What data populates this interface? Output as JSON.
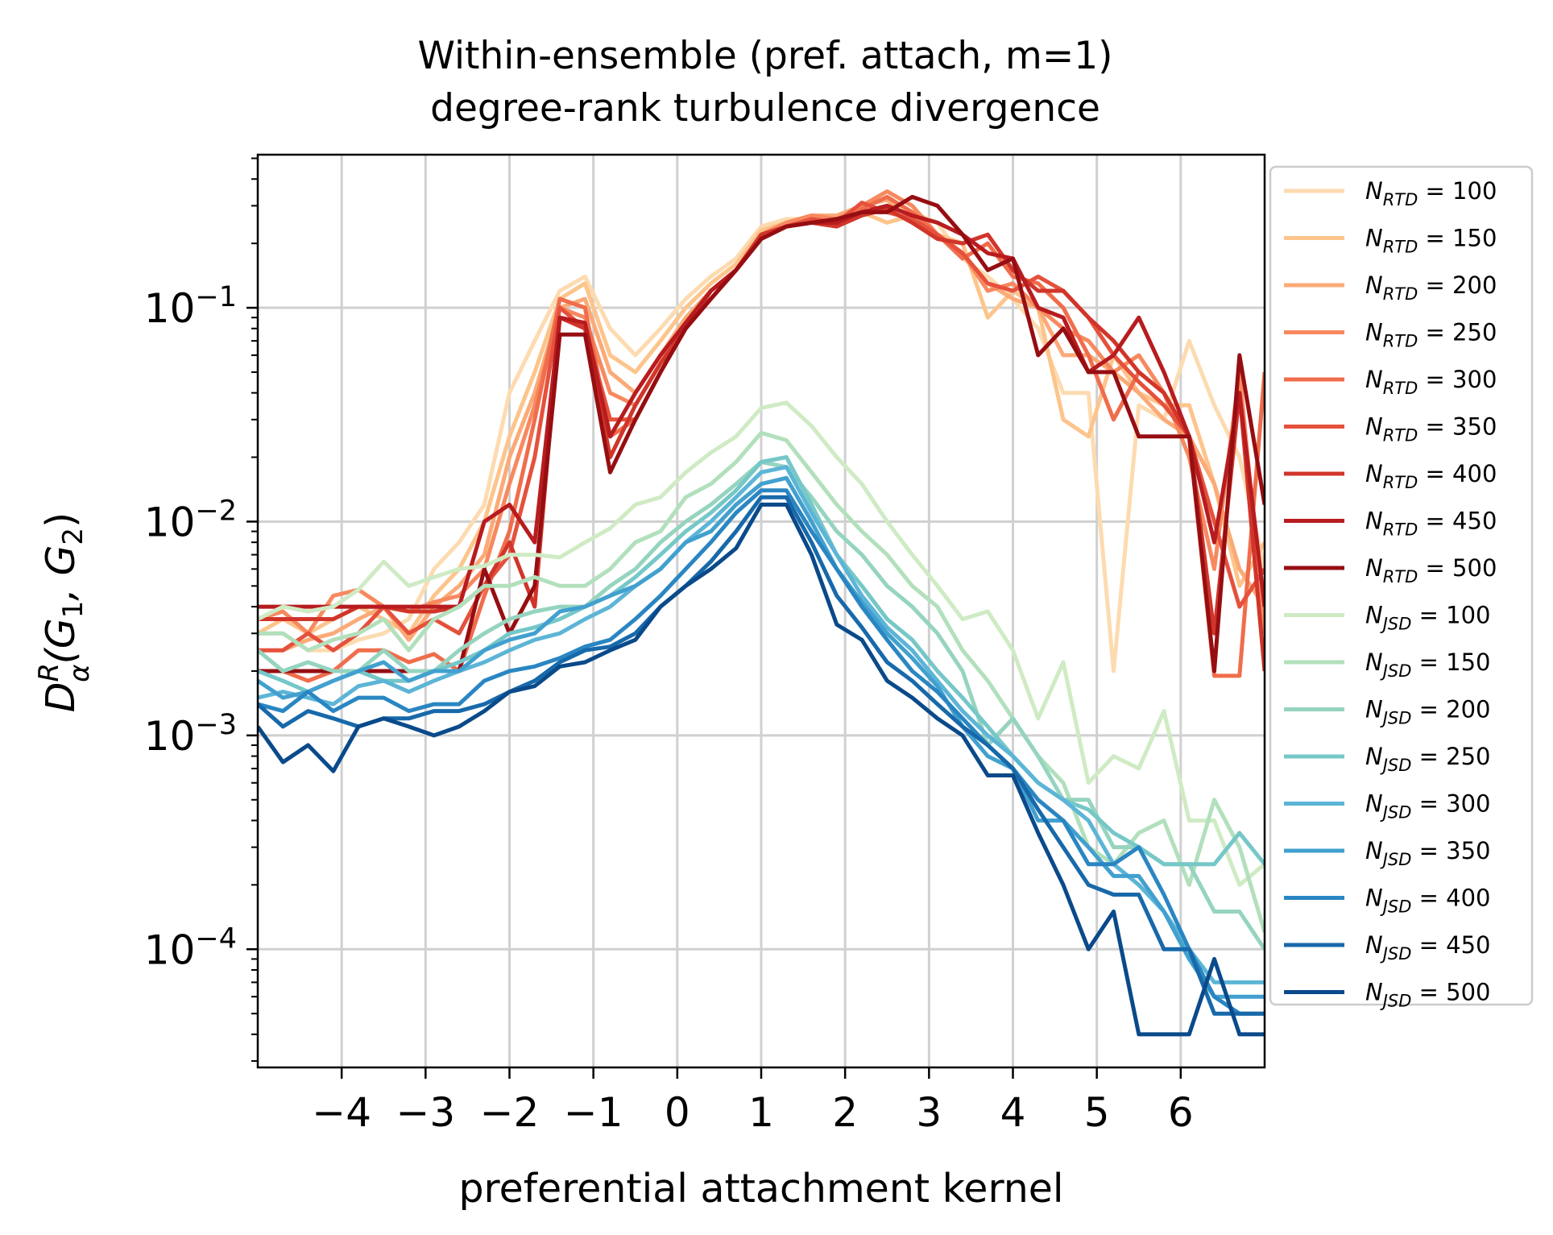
{
  "chart_data": {
    "type": "line",
    "title": "Within-ensemble (pref. attach, m=1)",
    "subtitle": "degree-rank turbulence divergence",
    "xlabel": "preferential attachment kernel",
    "ylabel": {
      "base": "D",
      "sup": "R",
      "sub": "α",
      "args": "(G",
      "sub1": "1",
      "comma": ", G",
      "sub2": "2",
      "close": ")"
    },
    "x_ticks": [
      -4,
      -3,
      -2,
      -1,
      0,
      1,
      2,
      3,
      4,
      5,
      6
    ],
    "x_tick_labels": [
      "−4",
      "−3",
      "−2",
      "−1",
      "0",
      "1",
      "2",
      "3",
      "4",
      "5",
      "6"
    ],
    "y_ticks": [
      {
        "value": 0.1,
        "base": "10",
        "exp": "−1"
      },
      {
        "value": 0.01,
        "base": "10",
        "exp": "−2"
      },
      {
        "value": 0.001,
        "base": "10",
        "exp": "−3"
      },
      {
        "value": 0.0001,
        "base": "10",
        "exp": "−4"
      }
    ],
    "xlim": [
      -5.0,
      7.0
    ],
    "ylim": [
      2.8e-05,
      0.52
    ],
    "yscale": "log",
    "grid": true,
    "legend_position": "outside right",
    "x": [
      -5.0,
      -4.7,
      -4.4,
      -4.1,
      -3.8,
      -3.5,
      -3.2,
      -2.9,
      -2.6,
      -2.3,
      -2.0,
      -1.7,
      -1.4,
      -1.1,
      -0.8,
      -0.5,
      -0.2,
      0.1,
      0.4,
      0.7,
      1.0,
      1.3,
      1.6,
      1.9,
      2.2,
      2.5,
      2.8,
      3.1,
      3.4,
      3.7,
      4.0,
      4.3,
      4.6,
      4.9,
      5.2,
      5.5,
      5.8,
      6.1,
      6.4,
      6.7,
      7.0
    ],
    "series": [
      {
        "name": "100",
        "group": "RTD",
        "color": "#fddbb0",
        "values": [
          0.003,
          0.003,
          0.0025,
          0.0025,
          0.0028,
          0.003,
          0.0035,
          0.006,
          0.008,
          0.012,
          0.04,
          0.07,
          0.12,
          0.14,
          0.08,
          0.06,
          0.08,
          0.11,
          0.14,
          0.17,
          0.24,
          0.26,
          0.26,
          0.25,
          0.28,
          0.3,
          0.28,
          0.25,
          0.17,
          0.14,
          0.11,
          0.08,
          0.04,
          0.04,
          0.002,
          0.035,
          0.03,
          0.07,
          0.035,
          0.02,
          0.006
        ]
      },
      {
        "name": "150",
        "group": "RTD",
        "color": "#fdc48b",
        "values": [
          0.003,
          0.0035,
          0.003,
          0.0035,
          0.004,
          0.0035,
          0.003,
          0.0045,
          0.006,
          0.01,
          0.025,
          0.05,
          0.11,
          0.13,
          0.06,
          0.05,
          0.07,
          0.1,
          0.13,
          0.16,
          0.23,
          0.25,
          0.27,
          0.26,
          0.28,
          0.25,
          0.27,
          0.22,
          0.2,
          0.09,
          0.12,
          0.1,
          0.03,
          0.025,
          0.06,
          0.04,
          0.035,
          0.035,
          0.015,
          0.005,
          0.008
        ]
      },
      {
        "name": "200",
        "group": "RTD",
        "color": "#fbaa77",
        "values": [
          0.0025,
          0.0025,
          0.0028,
          0.003,
          0.0035,
          0.004,
          0.0028,
          0.004,
          0.005,
          0.007,
          0.02,
          0.04,
          0.1,
          0.11,
          0.05,
          0.04,
          0.06,
          0.09,
          0.12,
          0.15,
          0.22,
          0.25,
          0.27,
          0.27,
          0.3,
          0.32,
          0.25,
          0.22,
          0.18,
          0.13,
          0.11,
          0.1,
          0.06,
          0.06,
          0.05,
          0.04,
          0.03,
          0.025,
          0.015,
          0.006,
          0.004
        ]
      },
      {
        "name": "250",
        "group": "RTD",
        "color": "#f7895f",
        "values": [
          0.0035,
          0.0038,
          0.003,
          0.0045,
          0.0048,
          0.004,
          0.0038,
          0.0042,
          0.0045,
          0.006,
          0.015,
          0.035,
          0.1,
          0.09,
          0.04,
          0.035,
          0.055,
          0.085,
          0.12,
          0.15,
          0.22,
          0.25,
          0.27,
          0.26,
          0.3,
          0.35,
          0.3,
          0.22,
          0.18,
          0.12,
          0.13,
          0.1,
          0.08,
          0.07,
          0.05,
          0.06,
          0.04,
          0.02,
          0.006,
          0.05,
          0.003
        ]
      },
      {
        "name": "300",
        "group": "RTD",
        "color": "#f06d4c",
        "values": [
          0.002,
          0.002,
          0.0018,
          0.002,
          0.0025,
          0.0025,
          0.0022,
          0.0024,
          0.002,
          0.0045,
          0.009,
          0.03,
          0.11,
          0.1,
          0.025,
          0.03,
          0.05,
          0.08,
          0.12,
          0.15,
          0.22,
          0.24,
          0.26,
          0.24,
          0.29,
          0.33,
          0.28,
          0.22,
          0.17,
          0.2,
          0.14,
          0.13,
          0.1,
          0.06,
          0.03,
          0.05,
          0.04,
          0.025,
          0.0019,
          0.0019,
          0.05
        ]
      },
      {
        "name": "350",
        "group": "RTD",
        "color": "#e5513c",
        "values": [
          0.0025,
          0.0025,
          0.003,
          0.0025,
          0.003,
          0.004,
          0.003,
          0.0035,
          0.003,
          0.005,
          0.007,
          0.02,
          0.1,
          0.08,
          0.03,
          0.03,
          0.05,
          0.08,
          0.11,
          0.15,
          0.21,
          0.24,
          0.26,
          0.25,
          0.31,
          0.28,
          0.26,
          0.22,
          0.18,
          0.13,
          0.12,
          0.14,
          0.12,
          0.09,
          0.06,
          0.045,
          0.035,
          0.025,
          0.01,
          0.004,
          0.006
        ]
      },
      {
        "name": "400",
        "group": "RTD",
        "color": "#d1352a",
        "values": [
          0.0035,
          0.0035,
          0.0035,
          0.0035,
          0.004,
          0.004,
          0.0038,
          0.0038,
          0.004,
          0.005,
          0.008,
          0.004,
          0.09,
          0.08,
          0.02,
          0.035,
          0.055,
          0.08,
          0.12,
          0.15,
          0.22,
          0.24,
          0.25,
          0.24,
          0.27,
          0.29,
          0.25,
          0.21,
          0.2,
          0.22,
          0.15,
          0.12,
          0.12,
          0.09,
          0.07,
          0.05,
          0.04,
          0.025,
          0.003,
          0.04,
          0.002
        ]
      },
      {
        "name": "450",
        "group": "RTD",
        "color": "#b81c1f",
        "values": [
          0.004,
          0.004,
          0.004,
          0.004,
          0.004,
          0.004,
          0.004,
          0.004,
          0.004,
          0.01,
          0.012,
          0.008,
          0.09,
          0.085,
          0.025,
          0.04,
          0.06,
          0.085,
          0.12,
          0.15,
          0.21,
          0.24,
          0.25,
          0.25,
          0.28,
          0.3,
          0.27,
          0.25,
          0.22,
          0.18,
          0.17,
          0.1,
          0.09,
          0.05,
          0.06,
          0.09,
          0.05,
          0.025,
          0.008,
          0.04,
          0.004
        ]
      },
      {
        "name": "500",
        "group": "RTD",
        "color": "#960e12",
        "values": [
          0.002,
          0.002,
          0.002,
          0.002,
          0.002,
          0.002,
          0.002,
          0.002,
          0.002,
          0.006,
          0.003,
          0.005,
          0.075,
          0.075,
          0.017,
          0.03,
          0.05,
          0.08,
          0.11,
          0.15,
          0.21,
          0.24,
          0.25,
          0.26,
          0.28,
          0.28,
          0.33,
          0.3,
          0.22,
          0.15,
          0.17,
          0.06,
          0.08,
          0.05,
          0.05,
          0.025,
          0.025,
          0.025,
          0.002,
          0.06,
          0.012
        ]
      },
      {
        "name": "100",
        "group": "JSD",
        "color": "#cfebc4",
        "values": [
          0.0035,
          0.004,
          0.0038,
          0.004,
          0.0048,
          0.0065,
          0.005,
          0.0055,
          0.006,
          0.0062,
          0.007,
          0.007,
          0.0068,
          0.008,
          0.0093,
          0.012,
          0.013,
          0.017,
          0.021,
          0.025,
          0.034,
          0.036,
          0.028,
          0.02,
          0.015,
          0.01,
          0.007,
          0.005,
          0.0035,
          0.0038,
          0.0025,
          0.0012,
          0.0022,
          0.0006,
          0.0008,
          0.0007,
          0.0013,
          0.0004,
          0.0004,
          0.0002,
          0.00025
        ]
      },
      {
        "name": "150",
        "group": "JSD",
        "color": "#b2e0bc",
        "values": [
          0.003,
          0.003,
          0.0025,
          0.0028,
          0.003,
          0.0035,
          0.0025,
          0.0035,
          0.004,
          0.005,
          0.005,
          0.0055,
          0.005,
          0.005,
          0.006,
          0.008,
          0.009,
          0.013,
          0.015,
          0.019,
          0.026,
          0.024,
          0.017,
          0.012,
          0.009,
          0.007,
          0.005,
          0.004,
          0.0025,
          0.0018,
          0.0012,
          0.0008,
          0.0006,
          0.0003,
          0.00025,
          0.00035,
          0.0004,
          0.0002,
          0.0005,
          0.0003,
          0.00012
        ]
      },
      {
        "name": "200",
        "group": "JSD",
        "color": "#95d4bf",
        "values": [
          0.0025,
          0.002,
          0.0022,
          0.002,
          0.002,
          0.0025,
          0.002,
          0.002,
          0.0025,
          0.003,
          0.0035,
          0.0038,
          0.004,
          0.004,
          0.005,
          0.006,
          0.008,
          0.01,
          0.012,
          0.015,
          0.019,
          0.018,
          0.013,
          0.009,
          0.007,
          0.005,
          0.004,
          0.003,
          0.002,
          0.0009,
          0.0012,
          0.0008,
          0.0005,
          0.0005,
          0.0003,
          0.0003,
          0.00025,
          0.00025,
          0.00015,
          0.00015,
          0.0001
        ]
      },
      {
        "name": "250",
        "group": "JSD",
        "color": "#76c7c8",
        "values": [
          0.002,
          0.0018,
          0.0016,
          0.0018,
          0.002,
          0.0018,
          0.0018,
          0.002,
          0.0022,
          0.0025,
          0.003,
          0.0032,
          0.0035,
          0.004,
          0.0045,
          0.0055,
          0.007,
          0.009,
          0.011,
          0.014,
          0.019,
          0.02,
          0.012,
          0.007,
          0.005,
          0.0035,
          0.0028,
          0.002,
          0.0015,
          0.0011,
          0.0008,
          0.0006,
          0.0005,
          0.00045,
          0.00035,
          0.0003,
          0.00025,
          0.00025,
          0.00025,
          0.00035,
          0.00025
        ]
      },
      {
        "name": "300",
        "group": "JSD",
        "color": "#5cb5d6",
        "values": [
          0.0015,
          0.0016,
          0.0015,
          0.0014,
          0.0017,
          0.0018,
          0.0016,
          0.0018,
          0.002,
          0.0022,
          0.0025,
          0.0028,
          0.003,
          0.0035,
          0.004,
          0.005,
          0.006,
          0.008,
          0.01,
          0.013,
          0.017,
          0.018,
          0.011,
          0.007,
          0.0045,
          0.0032,
          0.0025,
          0.0018,
          0.0013,
          0.001,
          0.0008,
          0.0006,
          0.0005,
          0.0004,
          0.00025,
          0.0002,
          0.00015,
          0.0001,
          7e-05,
          7e-05,
          7e-05
        ]
      },
      {
        "name": "350",
        "group": "JSD",
        "color": "#42a0cf",
        "values": [
          0.0018,
          0.0015,
          0.0016,
          0.0018,
          0.002,
          0.0022,
          0.0018,
          0.002,
          0.002,
          0.0025,
          0.0028,
          0.003,
          0.0038,
          0.004,
          0.0045,
          0.005,
          0.006,
          0.008,
          0.009,
          0.012,
          0.015,
          0.016,
          0.01,
          0.006,
          0.0042,
          0.003,
          0.0023,
          0.0017,
          0.0011,
          0.0008,
          0.0007,
          0.0004,
          0.0004,
          0.0003,
          0.00022,
          0.00022,
          0.00015,
          9e-05,
          6e-05,
          6e-05,
          6e-05
        ]
      },
      {
        "name": "400",
        "group": "JSD",
        "color": "#2a86c2",
        "values": [
          0.0014,
          0.0013,
          0.0016,
          0.0013,
          0.0015,
          0.0015,
          0.0013,
          0.0014,
          0.0014,
          0.0018,
          0.002,
          0.0021,
          0.0023,
          0.0026,
          0.0028,
          0.0035,
          0.0045,
          0.006,
          0.008,
          0.011,
          0.014,
          0.014,
          0.009,
          0.006,
          0.004,
          0.0028,
          0.002,
          0.0016,
          0.0012,
          0.0009,
          0.0007,
          0.0005,
          0.0004,
          0.00025,
          0.00025,
          0.0003,
          0.00018,
          0.0001,
          6e-05,
          5e-05,
          5e-05
        ]
      },
      {
        "name": "450",
        "group": "JSD",
        "color": "#1769aa",
        "values": [
          0.0014,
          0.0011,
          0.0013,
          0.0012,
          0.0011,
          0.0012,
          0.0012,
          0.0013,
          0.0013,
          0.0014,
          0.0016,
          0.0018,
          0.0022,
          0.0025,
          0.0026,
          0.003,
          0.004,
          0.005,
          0.0065,
          0.009,
          0.013,
          0.013,
          0.008,
          0.0045,
          0.0032,
          0.0022,
          0.0018,
          0.0014,
          0.0011,
          0.0009,
          0.0007,
          0.00045,
          0.0003,
          0.0002,
          0.00018,
          0.00018,
          0.0001,
          0.0001,
          5e-05,
          5e-05,
          5e-05
        ]
      },
      {
        "name": "500",
        "group": "JSD",
        "color": "#0a4a8a",
        "values": [
          0.0011,
          0.00075,
          0.0009,
          0.00068,
          0.0011,
          0.0012,
          0.0011,
          0.001,
          0.0011,
          0.0013,
          0.0016,
          0.0017,
          0.0021,
          0.0022,
          0.0025,
          0.0028,
          0.004,
          0.005,
          0.006,
          0.0075,
          0.012,
          0.012,
          0.007,
          0.0033,
          0.0028,
          0.0018,
          0.0015,
          0.0012,
          0.001,
          0.00065,
          0.00065,
          0.00035,
          0.0002,
          0.0001,
          0.00015,
          4e-05,
          4e-05,
          4e-05,
          9e-05,
          4e-05,
          4e-05
        ]
      }
    ]
  }
}
